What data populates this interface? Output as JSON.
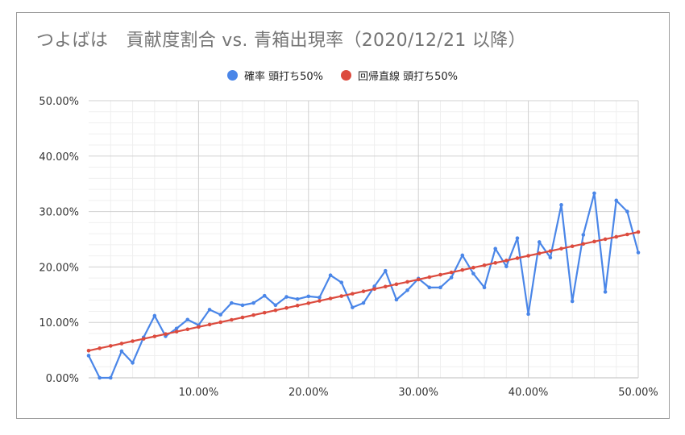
{
  "chart_data": {
    "type": "line",
    "title": "つよばは　貢献度割合 vs. 青箱出現率（2020/12/21 以降）",
    "xlabel": "",
    "ylabel": "",
    "xlim": [
      0,
      0.5
    ],
    "ylim": [
      0,
      0.5
    ],
    "x_ticks": [
      0.1,
      0.2,
      0.3,
      0.4,
      0.5
    ],
    "x_tick_labels": [
      "10.00%",
      "20.00%",
      "30.00%",
      "40.00%",
      "50.00%"
    ],
    "y_ticks": [
      0,
      0.1,
      0.2,
      0.3,
      0.4,
      0.5
    ],
    "y_tick_labels": [
      "0.00%",
      "10.00%",
      "20.00%",
      "30.00%",
      "40.00%",
      "50.00%"
    ],
    "grid": true,
    "legend_position": "top",
    "series": [
      {
        "name": "確率 頭打ち50%",
        "color": "#4a86e8",
        "x": [
          0.0,
          0.01,
          0.02,
          0.03,
          0.04,
          0.05,
          0.06,
          0.07,
          0.08,
          0.09,
          0.1,
          0.11,
          0.12,
          0.13,
          0.14,
          0.15,
          0.16,
          0.17,
          0.18,
          0.19,
          0.2,
          0.21,
          0.22,
          0.23,
          0.24,
          0.25,
          0.26,
          0.27,
          0.28,
          0.29,
          0.3,
          0.31,
          0.32,
          0.33,
          0.34,
          0.35,
          0.36,
          0.37,
          0.38,
          0.39,
          0.4,
          0.41,
          0.42,
          0.43,
          0.44,
          0.45,
          0.46,
          0.47,
          0.48,
          0.49,
          0.5
        ],
        "y": [
          0.04,
          0.0,
          0.0,
          0.048,
          0.027,
          0.073,
          0.112,
          0.075,
          0.089,
          0.105,
          0.095,
          0.123,
          0.114,
          0.135,
          0.131,
          0.135,
          0.148,
          0.131,
          0.146,
          0.142,
          0.147,
          0.145,
          0.185,
          0.172,
          0.127,
          0.135,
          0.165,
          0.193,
          0.141,
          0.158,
          0.179,
          0.163,
          0.163,
          0.181,
          0.221,
          0.188,
          0.163,
          0.233,
          0.201,
          0.252,
          0.115,
          0.245,
          0.217,
          0.312,
          0.138,
          0.258,
          0.333,
          0.155,
          0.32,
          0.3,
          0.226
        ]
      },
      {
        "name": "回帰直線 頭打ち50%",
        "color": "#dc4b3e",
        "x_start": 0.0,
        "x_end": 0.5,
        "x_step": 0.01,
        "intercept": 0.049,
        "slope": 0.428
      }
    ]
  }
}
